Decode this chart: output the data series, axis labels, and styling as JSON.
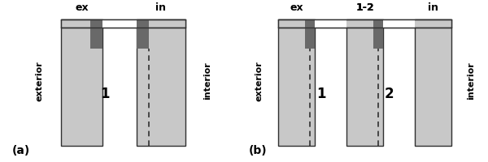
{
  "bg_color": "#ffffff",
  "glass_light": "#c8c8c8",
  "glass_dark": "#696969",
  "text_color": "#000000",
  "line_color": "#303030",
  "panel_a": {
    "label": "(a)",
    "ex_label": "ex",
    "in_label": "in",
    "exterior_label": "exterior",
    "interior_label": "interior",
    "gap_label": "1"
  },
  "panel_b": {
    "label": "(b)",
    "ex_label": "ex",
    "in_label": "in",
    "mid_label": "1-2",
    "exterior_label": "exterior",
    "interior_label": "interior",
    "gap1_label": "1",
    "gap2_label": "2"
  }
}
